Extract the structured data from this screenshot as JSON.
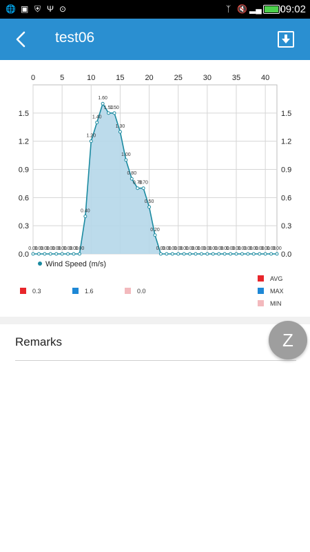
{
  "status_bar": {
    "time": "09:02"
  },
  "header": {
    "title": "test06"
  },
  "legend": {
    "avg_label": "AVG",
    "max_label": "MAX",
    "min_label": "MIN",
    "avg_value": "0.3",
    "max_value": "1.6",
    "min_value": "0.0",
    "avg_color": "#e8262b",
    "max_color": "#1e88d6",
    "min_color": "#f3b9bd"
  },
  "remarks": {
    "label": "Remarks"
  },
  "fab": {
    "label": "Z"
  },
  "chart_data": {
    "type": "area",
    "series": [
      {
        "name": "Wind Speed  (m/s)",
        "color": "#1a8aa0",
        "values": [
          0,
          0,
          0,
          0,
          0,
          0,
          0,
          0,
          0,
          0.4,
          1.2,
          1.4,
          1.6,
          1.5,
          1.5,
          1.3,
          1.0,
          0.8,
          0.7,
          0.7,
          0.5,
          0.2,
          0,
          0,
          0,
          0,
          0,
          0,
          0,
          0,
          0,
          0,
          0,
          0,
          0,
          0,
          0,
          0,
          0,
          0,
          0,
          0,
          0
        ],
        "labels": [
          "0.00",
          "0.00",
          "0.00",
          "0.00",
          "0.00",
          "0.00",
          "0.00",
          "0.00",
          "0.00",
          "0.40",
          "1.20",
          "1.40",
          "1.60",
          "1.50",
          "1.50",
          "1.30",
          "1.00",
          "0.80",
          "0.70",
          "0.70",
          "0.50",
          "0.20",
          "0.00",
          "0.00",
          "0.00",
          "0.00",
          "0.00",
          "0.00",
          "0.00",
          "0.00",
          "0.00",
          "0.00",
          "0.00",
          "0.00",
          "0.00",
          "0.00",
          "0.00",
          "0.00",
          "0.00",
          "0.00",
          "0.00",
          "0.00",
          "0.00"
        ]
      }
    ],
    "x": [
      0,
      1,
      2,
      3,
      4,
      5,
      6,
      7,
      8,
      9,
      10,
      11,
      12,
      13,
      14,
      15,
      16,
      17,
      18,
      19,
      20,
      21,
      22,
      23,
      24,
      25,
      26,
      27,
      28,
      29,
      30,
      31,
      32,
      33,
      34,
      35,
      36,
      37,
      38,
      39,
      40,
      41,
      42
    ],
    "xlim": [
      0,
      42
    ],
    "x_ticks": [
      "0",
      "5",
      "10",
      "15",
      "20",
      "25",
      "30",
      "35",
      "40"
    ],
    "ylim": [
      0,
      1.8
    ],
    "y_ticks": [
      "0.0",
      "0.3",
      "0.6",
      "0.9",
      "1.2",
      "1.5"
    ],
    "grid": true,
    "fill_color": "#b5d7e9"
  }
}
